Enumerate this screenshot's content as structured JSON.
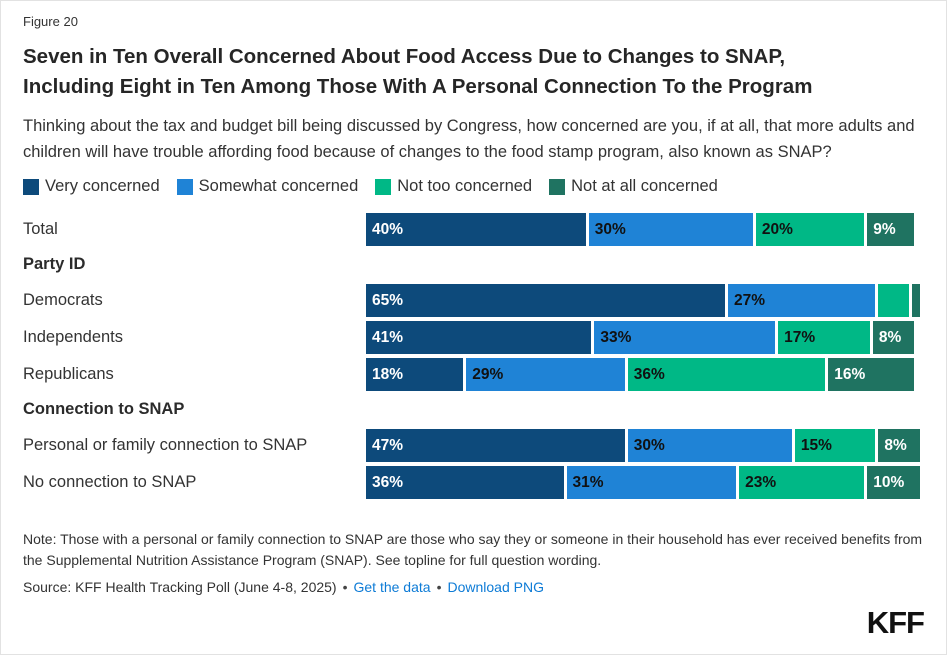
{
  "figure_label": "Figure 20",
  "title_line1": "Seven in Ten Overall Concerned About Food Access Due to Changes to SNAP,",
  "title_line2": "Including Eight in Ten Among Those With A Personal Connection To the Program",
  "question": "Thinking about the tax and budget bill being discussed by Congress, how concerned are you, if at all, that more adults and children will have trouble affording food because of changes to the food stamp program, also known as SNAP?",
  "chart_data": {
    "type": "bar",
    "stacked": true,
    "orientation": "horizontal",
    "legend": [
      "Very concerned",
      "Somewhat concerned",
      "Not too concerned",
      "Not at all concerned"
    ],
    "colors": [
      "#0D4A7B",
      "#1F83D6",
      "#00B886",
      "#1F7361"
    ],
    "label_text_colors": [
      "#ffffff",
      "#111111",
      "#111111",
      "#ffffff"
    ],
    "xlim": [
      0,
      100
    ],
    "unit": "%",
    "rows": [
      {
        "type": "bar",
        "label": "Total",
        "values": [
          40,
          30,
          20,
          9
        ],
        "labels": [
          "40%",
          "30%",
          "20%",
          "9%"
        ]
      },
      {
        "type": "header",
        "label": "Party ID"
      },
      {
        "type": "bar",
        "label": "Democrats",
        "values": [
          65,
          27,
          6,
          2
        ],
        "labels": [
          "65%",
          "27%",
          "",
          ""
        ]
      },
      {
        "type": "bar",
        "label": "Independents",
        "values": [
          41,
          33,
          17,
          8
        ],
        "labels": [
          "41%",
          "33%",
          "17%",
          "8%"
        ]
      },
      {
        "type": "bar",
        "label": "Republicans",
        "values": [
          18,
          29,
          36,
          16
        ],
        "labels": [
          "18%",
          "29%",
          "36%",
          "16%"
        ]
      },
      {
        "type": "header",
        "label": "Connection to SNAP"
      },
      {
        "type": "bar",
        "label": "Personal or family connection to SNAP",
        "values": [
          47,
          30,
          15,
          8
        ],
        "labels": [
          "47%",
          "30%",
          "15%",
          "8%"
        ]
      },
      {
        "type": "bar",
        "label": "No connection to SNAP",
        "values": [
          36,
          31,
          23,
          10
        ],
        "labels": [
          "36%",
          "31%",
          "23%",
          "10%"
        ]
      }
    ]
  },
  "note": "Note: Those with a personal or family connection to SNAP are those who say they or someone in their household has ever received benefits from the Supplemental Nutrition Assistance Program (SNAP). See topline for full question wording.",
  "source": {
    "text": "Source: KFF Health Tracking Poll (June 4-8, 2025)",
    "separator": "•",
    "links": [
      "Get the data",
      "Download PNG"
    ]
  },
  "logo_text": "KFF",
  "accent_colors": {
    "link": "#0D7BD6"
  }
}
